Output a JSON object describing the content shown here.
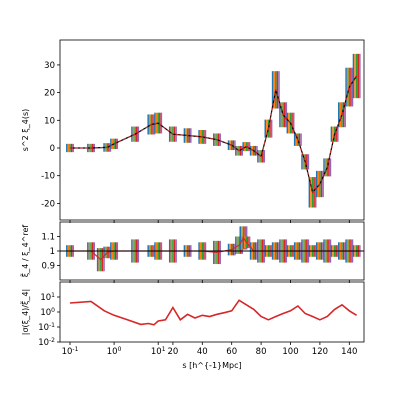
{
  "chart_data": [
    {
      "type": "line",
      "panel": "top",
      "ylabel": "s^2 ξ_4(s)",
      "ylim": [
        -26,
        39
      ],
      "yticks": [
        -20,
        -10,
        0,
        10,
        20,
        30
      ],
      "x": [
        0.1,
        0.3,
        0.7,
        1,
        3,
        7,
        10,
        20,
        30,
        40,
        50,
        60,
        65,
        70,
        75,
        80,
        85,
        90,
        95,
        100,
        105,
        110,
        115,
        120,
        125,
        130,
        135,
        140,
        145
      ],
      "series": [
        {
          "values": [
            0,
            0,
            0.2,
            1.5,
            5,
            8.5,
            9,
            5,
            4.5,
            4,
            3,
            1,
            -1,
            0.5,
            -1,
            -3,
            7,
            21,
            12,
            9,
            3,
            -5,
            -16,
            -13,
            -7,
            5,
            12,
            22,
            26
          ]
        }
      ],
      "ensemble_colors": [
        "#1f77b4",
        "#ff7f0e",
        "#2ca02c",
        "#d62728",
        "#9467bd"
      ]
    },
    {
      "type": "line",
      "panel": "middle",
      "ylabel": "ξ̃_4 / ξ_4^ref",
      "ylim": [
        0.8,
        1.2
      ],
      "yticks": [
        0.9,
        1.0,
        1.1
      ],
      "x": [
        0.1,
        0.3,
        0.5,
        0.7,
        1,
        3,
        7,
        10,
        20,
        30,
        40,
        50,
        60,
        65,
        68,
        70,
        75,
        80,
        85,
        90,
        95,
        100,
        105,
        110,
        115,
        120,
        125,
        130,
        135,
        140,
        145
      ],
      "series": [
        {
          "values": [
            1.0,
            1.0,
            0.94,
            0.99,
            1.0,
            1.0,
            1.0,
            1.0,
            1.0,
            1.0,
            1.0,
            0.99,
            1.01,
            1.04,
            1.09,
            1.06,
            1.0,
            1.0,
            1.0,
            1.0,
            1.0,
            1.0,
            1.0,
            1.0,
            1.0,
            1.0,
            1.0,
            1.0,
            1.0,
            1.0,
            1.0
          ]
        }
      ]
    },
    {
      "type": "line",
      "panel": "bottom",
      "ylabel": "|σ(ξ_4)/ξ̃_4|",
      "xlabel": "s [h^{-1}Mpc]",
      "yscale": "log",
      "ylim_log": [
        -2,
        2
      ],
      "yticks": [
        "10^{-2}",
        "10^{-1}",
        "10^{0}",
        "10^{1}"
      ],
      "xticks": [
        "10^{-1}",
        "10^{0}",
        "10^{1}",
        "20",
        "40",
        "60",
        "80",
        "100",
        "120",
        "140"
      ],
      "x": [
        0.1,
        0.3,
        0.6,
        1,
        2,
        4,
        6,
        8,
        10,
        15,
        20,
        25,
        30,
        35,
        40,
        45,
        50,
        55,
        60,
        65,
        70,
        75,
        80,
        85,
        90,
        95,
        100,
        105,
        110,
        115,
        120,
        125,
        130,
        135,
        140,
        145
      ],
      "series": [
        {
          "color": "#d62728",
          "values": [
            4,
            5,
            1.2,
            0.6,
            0.3,
            0.15,
            0.17,
            0.14,
            0.25,
            0.3,
            2,
            0.3,
            0.7,
            0.4,
            0.6,
            0.5,
            0.7,
            0.9,
            1.2,
            6,
            3,
            1.5,
            0.5,
            0.3,
            0.5,
            0.8,
            1.2,
            2.5,
            0.8,
            0.5,
            0.3,
            0.5,
            1.5,
            3,
            1.2,
            0.6
          ]
        }
      ]
    }
  ]
}
